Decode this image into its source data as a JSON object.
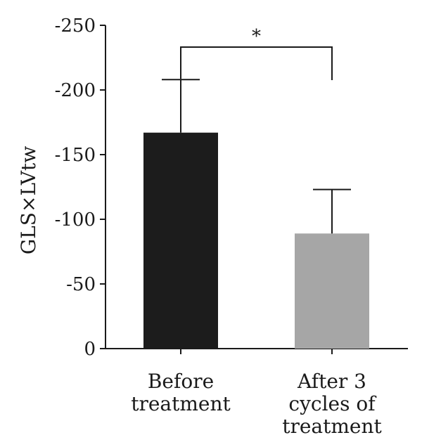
{
  "chart_data": {
    "type": "bar",
    "ylabel": "GLS×LVtw",
    "xlabel": "",
    "ylim": [
      0,
      -250
    ],
    "y_ticks": [
      "-250",
      "-200",
      "-150",
      "-100",
      "-50",
      "0"
    ],
    "y_tick_values": [
      -250,
      -200,
      -150,
      -100,
      -50,
      0
    ],
    "categories": [
      [
        "Before",
        "treatment"
      ],
      [
        "After 3",
        "cycles of",
        "treatment"
      ]
    ],
    "values": [
      -167,
      -89
    ],
    "error_upper": [
      -208,
      -123
    ],
    "bar_colors": [
      "#1c1c1c",
      "#a6a6a6"
    ],
    "significance": {
      "between": [
        0,
        1
      ],
      "label": "*"
    },
    "grid": false,
    "legend": "none"
  }
}
